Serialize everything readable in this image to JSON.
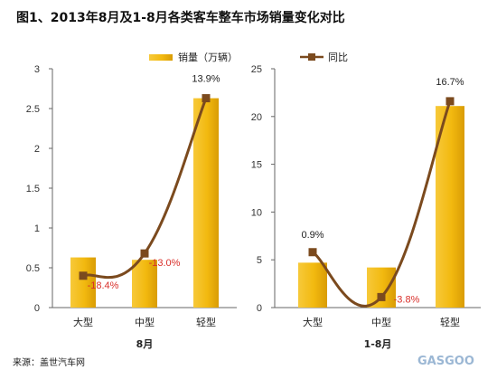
{
  "title": "图1、2013年8月及1-8月各类客车整车市场销量变化对比",
  "source": "来源：盖世汽车网",
  "watermark": "GASGOO",
  "legend": {
    "bar": "销量（万辆）",
    "line": "同比"
  },
  "colors": {
    "bar": "#f2b90f",
    "bar_dark": "#c78e00",
    "line": "#7b4a1e",
    "label_red": "#d9302b",
    "label_dark": "#222222"
  },
  "chart_data": [
    {
      "type": "bar+line",
      "group_label": "8月",
      "categories": [
        "大型",
        "中型",
        "轻型"
      ],
      "series": [
        {
          "name": "销量（万辆）",
          "type": "bar",
          "values": [
            0.63,
            0.6,
            2.63
          ]
        },
        {
          "name": "同比",
          "type": "line",
          "values": [
            -18.4,
            -13.0,
            13.9
          ],
          "labels": [
            "-18.4%",
            "-13.0%",
            "13.9%"
          ],
          "plot_positions": [
            0.4,
            0.68,
            2.63
          ]
        }
      ],
      "ylim": [
        0,
        3
      ],
      "yticks": [
        "0",
        "0.5",
        "1",
        "1.5",
        "2",
        "2.5",
        "3"
      ],
      "grid": false,
      "legend_position": "top"
    },
    {
      "type": "bar+line",
      "group_label": "1-8月",
      "categories": [
        "大型",
        "中型",
        "轻型"
      ],
      "series": [
        {
          "name": "销量（万辆）",
          "type": "bar",
          "values": [
            4.7,
            4.2,
            21.1
          ]
        },
        {
          "name": "同比",
          "type": "line",
          "values": [
            0.9,
            -3.8,
            16.7
          ],
          "labels": [
            "0.9%",
            "-3.8%",
            "16.7%"
          ],
          "plot_positions": [
            5.8,
            1.1,
            21.6
          ]
        }
      ],
      "ylim": [
        0,
        25
      ],
      "yticks": [
        "0",
        "5",
        "10",
        "15",
        "20",
        "25"
      ],
      "grid": false,
      "legend_position": "top"
    }
  ]
}
